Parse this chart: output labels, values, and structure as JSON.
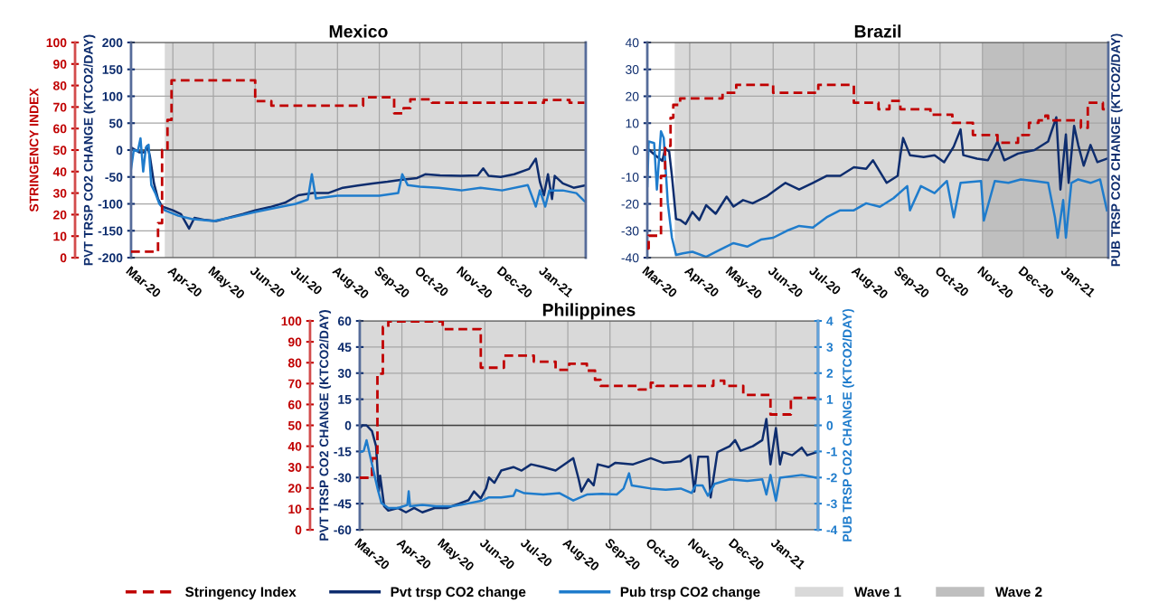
{
  "chart_data": [
    {
      "type": "line",
      "title": "Mexico",
      "ylabel": "STRINGENCY INDEX",
      "y2label": "PVT TRSP CO2 CHANGE (KTCO2/DAY)",
      "xlim": [
        "2020-03-01",
        "2021-02-01"
      ],
      "xticks": [
        {
          "value": "2020-03-01",
          "label": "Mar-20"
        },
        {
          "value": "2020-04-01",
          "label": "Apr-20"
        },
        {
          "value": "2020-05-01",
          "label": "May-20"
        },
        {
          "value": "2020-06-01",
          "label": "Jun-20"
        },
        {
          "value": "2020-07-01",
          "label": "Jul-20"
        },
        {
          "value": "2020-08-01",
          "label": "Aug-20"
        },
        {
          "value": "2020-09-01",
          "label": "Sep-20"
        },
        {
          "value": "2020-10-01",
          "label": "Oct-20"
        },
        {
          "value": "2020-11-01",
          "label": "Nov-20"
        },
        {
          "value": "2020-12-01",
          "label": "Dec-20"
        },
        {
          "value": "2021-01-01",
          "label": "Jan-21"
        }
      ],
      "ylim": [
        0,
        100
      ],
      "yticks": [
        0,
        10,
        20,
        30,
        40,
        50,
        60,
        70,
        80,
        90,
        100
      ],
      "y2lim": [
        -200,
        200
      ],
      "y2ticks": [
        -200,
        -150,
        -100,
        -50,
        0,
        50,
        100,
        150,
        200
      ],
      "grid": true,
      "ref_lines": [
        {
          "axis": "y2",
          "value": 0,
          "color": "#404040"
        }
      ],
      "bands": [
        {
          "axis": "x",
          "from": "2020-03-26",
          "to": "2021-02-01",
          "color": "#d9d9d9"
        }
      ],
      "series": [
        {
          "type": "step",
          "axis": "y",
          "color": "#c00000",
          "line_style": "dashed",
          "x": [
            "2020-03-01",
            "2020-03-19",
            "2020-03-21",
            "2020-03-24",
            "2020-03-28",
            "2020-03-31",
            "2020-06-01",
            "2020-06-13",
            "2020-08-20",
            "2020-09-12",
            "2020-09-19",
            "2020-09-24",
            "2020-10-10",
            "2021-01-01",
            "2021-01-20",
            "2021-01-31"
          ],
          "values": [
            2.8,
            2.8,
            16,
            50,
            64,
            82.4,
            72.7,
            70.6,
            74.5,
            67.1,
            69.5,
            73.6,
            72,
            73.3,
            72,
            72
          ]
        },
        {
          "axis": "y2",
          "color": "#0e2d6e",
          "x": [
            "2020-03-01",
            "2020-03-07",
            "2020-03-11",
            "2020-03-13",
            "2020-03-15",
            "2020-03-18",
            "2020-03-21",
            "2020-03-24",
            "2020-04-01",
            "2020-04-07",
            "2020-04-13",
            "2020-04-17",
            "2020-04-25",
            "2020-05-03",
            "2020-05-12",
            "2020-05-23",
            "2020-06-01",
            "2020-06-12",
            "2020-06-23",
            "2020-07-03",
            "2020-07-14",
            "2020-07-25",
            "2020-08-05",
            "2020-08-16",
            "2020-08-27",
            "2020-09-07",
            "2020-09-18",
            "2020-09-29",
            "2020-10-05",
            "2020-10-16",
            "2020-11-01",
            "2020-11-13",
            "2020-11-17",
            "2020-11-21",
            "2020-11-30",
            "2020-12-10",
            "2020-12-21",
            "2020-12-26",
            "2020-12-29",
            "2021-01-01",
            "2021-01-04",
            "2021-01-07",
            "2021-01-09",
            "2021-01-15",
            "2021-01-23",
            "2021-01-31"
          ],
          "values": [
            5,
            -4,
            -4,
            8,
            -12,
            -62,
            -91,
            -105,
            -112,
            -119,
            -146,
            -126,
            -130,
            -132,
            -126,
            -119,
            -112,
            -106,
            -98,
            -84,
            -80,
            -80,
            -70,
            -66,
            -62,
            -59,
            -55,
            -52,
            -45,
            -47,
            -48,
            -47,
            -34,
            -48,
            -50,
            -45,
            -35,
            -16,
            -59,
            -84,
            -45,
            -91,
            -48,
            -62,
            -70,
            -66
          ]
        },
        {
          "axis": "y2",
          "color": "#1f7ccc",
          "x": [
            "2020-03-01",
            "2020-03-03",
            "2020-03-06",
            "2020-03-08",
            "2020-03-10",
            "2020-03-12",
            "2020-03-14",
            "2020-03-16",
            "2020-03-19",
            "2020-03-22",
            "2020-03-26",
            "2020-04-05",
            "2020-04-15",
            "2020-05-01",
            "2020-05-15",
            "2020-06-01",
            "2020-06-15",
            "2020-07-01",
            "2020-07-10",
            "2020-07-13",
            "2020-07-16",
            "2020-08-01",
            "2020-08-15",
            "2020-09-01",
            "2020-09-15",
            "2020-09-18",
            "2020-09-22",
            "2020-10-01",
            "2020-10-15",
            "2020-11-01",
            "2020-11-15",
            "2020-12-01",
            "2020-12-20",
            "2020-12-26",
            "2020-12-29",
            "2021-01-02",
            "2021-01-05",
            "2021-01-15",
            "2021-01-25",
            "2021-01-31"
          ],
          "values": [
            -35,
            0,
            -2,
            22,
            -40,
            5,
            10,
            -65,
            -80,
            -100,
            -112,
            -122,
            -128,
            -132,
            -125,
            -115,
            -108,
            -100,
            -92,
            -45,
            -90,
            -85,
            -85,
            -85,
            -80,
            -45,
            -65,
            -68,
            -70,
            -75,
            -70,
            -75,
            -65,
            -105,
            -75,
            -105,
            -75,
            -75,
            -80,
            -95
          ]
        }
      ]
    },
    {
      "type": "line",
      "title": "Brazil",
      "y2label": "PUB TRSP CO2 CHANGE (KTCO2/DAY)",
      "xlim": [
        "2020-03-01",
        "2021-02-01"
      ],
      "xticks": [
        {
          "value": "2020-03-01",
          "label": "Mar-20"
        },
        {
          "value": "2020-04-01",
          "label": "Apr-20"
        },
        {
          "value": "2020-05-01",
          "label": "May-20"
        },
        {
          "value": "2020-06-01",
          "label": "Jun-20"
        },
        {
          "value": "2020-07-01",
          "label": "Jul-20"
        },
        {
          "value": "2020-08-01",
          "label": "Aug-20"
        },
        {
          "value": "2020-09-01",
          "label": "Sep-20"
        },
        {
          "value": "2020-10-01",
          "label": "Oct-20"
        },
        {
          "value": "2020-11-01",
          "label": "Nov-20"
        },
        {
          "value": "2020-12-01",
          "label": "Dec-20"
        },
        {
          "value": "2021-01-01",
          "label": "Jan-21"
        }
      ],
      "ylim": [
        0,
        100
      ],
      "y2lim": [
        -40,
        40
      ],
      "y2ticks": [
        -40,
        -30,
        -20,
        -10,
        0,
        10,
        20,
        30,
        40
      ],
      "grid": true,
      "legend": "bottom",
      "ref_lines": [
        {
          "axis": "y2",
          "value": 0,
          "color": "#404040"
        }
      ],
      "bands": [
        {
          "axis": "x",
          "from": "2020-03-21",
          "to": "2021-02-01",
          "color": "#d9d9d9",
          "label": "Wave 1"
        },
        {
          "axis": "x",
          "from": "2020-11-01",
          "to": "2021-02-01",
          "color": "#bfbfbf",
          "label": "Wave 2"
        }
      ],
      "series": [
        {
          "type": "step",
          "axis": "y",
          "color": "#c00000",
          "line_style": "dashed",
          "x": [
            "2020-03-01",
            "2020-03-02",
            "2020-03-11",
            "2020-03-14",
            "2020-03-18",
            "2020-03-20",
            "2020-03-25",
            "2020-04-25",
            "2020-05-05",
            "2020-06-01",
            "2020-07-04",
            "2020-07-30",
            "2020-08-17",
            "2020-08-25",
            "2020-09-02",
            "2020-09-24",
            "2020-10-10",
            "2020-10-25",
            "2020-11-12",
            "2020-11-27",
            "2020-12-05",
            "2020-12-12",
            "2020-12-17",
            "2020-12-19",
            "2021-01-12",
            "2021-01-17",
            "2021-01-28",
            "2021-01-31"
          ],
          "values": [
            4.3,
            10.2,
            38,
            52,
            65,
            71,
            74,
            76.6,
            80.3,
            76.6,
            80.3,
            72,
            69,
            72.8,
            69,
            66.4,
            62.7,
            57,
            53.4,
            57,
            62.7,
            63.8,
            66,
            63.8,
            60.3,
            72,
            69,
            69
          ]
        },
        {
          "axis": "y2",
          "color": "#0e2d6e",
          "x": [
            "2020-03-01",
            "2020-03-07",
            "2020-03-12",
            "2020-03-14",
            "2020-03-17",
            "2020-03-19",
            "2020-03-22",
            "2020-03-25",
            "2020-03-29",
            "2020-04-03",
            "2020-04-08",
            "2020-04-13",
            "2020-04-20",
            "2020-04-28",
            "2020-05-03",
            "2020-05-10",
            "2020-05-17",
            "2020-05-27",
            "2020-06-03",
            "2020-06-10",
            "2020-06-20",
            "2020-06-30",
            "2020-07-10",
            "2020-07-20",
            "2020-07-30",
            "2020-08-08",
            "2020-08-13",
            "2020-08-23",
            "2020-08-31",
            "2020-09-02",
            "2020-09-04",
            "2020-09-09",
            "2020-09-19",
            "2020-09-27",
            "2020-10-04",
            "2020-10-11",
            "2020-10-16",
            "2020-10-18",
            "2020-10-28",
            "2020-11-05",
            "2020-11-12",
            "2020-11-17",
            "2020-11-27",
            "2020-12-09",
            "2020-12-19",
            "2020-12-25",
            "2020-12-28",
            "2021-01-01",
            "2021-01-03",
            "2021-01-07",
            "2021-01-10",
            "2021-01-14",
            "2021-01-19",
            "2021-01-24",
            "2021-01-31"
          ],
          "values": [
            0.6,
            -2,
            -4,
            0.6,
            -0.6,
            -9.6,
            -25.6,
            -26,
            -27.5,
            -23,
            -26,
            -20.5,
            -23.7,
            -17.3,
            -21,
            -18.6,
            -19.8,
            -17.3,
            -14.7,
            -12.2,
            -14.7,
            -12.2,
            -9.6,
            -9.6,
            -6.4,
            -7,
            -3.8,
            -12.2,
            -9.6,
            -1.9,
            4.5,
            -1.9,
            -2.6,
            -1.9,
            -4.5,
            1.3,
            7.7,
            -1.9,
            -3.2,
            -3.8,
            3.2,
            -3.8,
            -1.3,
            0,
            3.2,
            12.2,
            -14.7,
            5.8,
            -12.2,
            9,
            1.9,
            -5.8,
            1.9,
            -4.5,
            -3.2
          ]
        },
        {
          "axis": "y2",
          "color": "#1f7ccc",
          "x": [
            "2020-03-01",
            "2020-03-02",
            "2020-03-06",
            "2020-03-08",
            "2020-03-11",
            "2020-03-13",
            "2020-03-16",
            "2020-03-19",
            "2020-03-22",
            "2020-03-27",
            "2020-04-03",
            "2020-04-13",
            "2020-04-23",
            "2020-05-03",
            "2020-05-13",
            "2020-05-23",
            "2020-06-01",
            "2020-06-11",
            "2020-06-20",
            "2020-06-30",
            "2020-07-10",
            "2020-07-20",
            "2020-07-30",
            "2020-08-08",
            "2020-08-18",
            "2020-08-28",
            "2020-09-07",
            "2020-09-09",
            "2020-09-17",
            "2020-09-27",
            "2020-10-06",
            "2020-10-11",
            "2020-10-16",
            "2020-10-31",
            "2020-11-02",
            "2020-11-10",
            "2020-11-20",
            "2020-11-29",
            "2020-12-09",
            "2020-12-19",
            "2020-12-24",
            "2020-12-26",
            "2020-12-30",
            "2021-01-01",
            "2021-01-05",
            "2021-01-10",
            "2021-01-19",
            "2021-01-26",
            "2021-01-31"
          ],
          "values": [
            -13.4,
            3.2,
            2.6,
            -14.7,
            7,
            4.5,
            -19.8,
            -32.6,
            -39,
            -38.4,
            -37.8,
            -39.7,
            -37.1,
            -34.6,
            -35.9,
            -33.3,
            -32.6,
            -30,
            -28.2,
            -28.8,
            -25,
            -22.4,
            -22.4,
            -19.8,
            -21.1,
            -17.9,
            -13.4,
            -22.4,
            -13.4,
            -16,
            -11.5,
            -25,
            -12.2,
            -11.5,
            -26.2,
            -11.5,
            -12.2,
            -10.9,
            -11.5,
            -12.2,
            -25,
            -32.6,
            -18.6,
            -32.6,
            -12.2,
            -10.9,
            -12.2,
            -10.9,
            -22.4
          ]
        }
      ]
    },
    {
      "type": "line",
      "title": "Philippines",
      "y2label": "PVT TRSP CO2 CHANGE (KTCO2/DAY)",
      "y3label": "PUB TRSP CO2 CHANGE (KTCO2/DAY)",
      "xlim": [
        "2020-03-01",
        "2021-02-01"
      ],
      "xticks": [
        {
          "value": "2020-03-01",
          "label": "Mar-20"
        },
        {
          "value": "2020-04-01",
          "label": "Apr-20"
        },
        {
          "value": "2020-05-01",
          "label": "May-20"
        },
        {
          "value": "2020-06-01",
          "label": "Jun-20"
        },
        {
          "value": "2020-07-01",
          "label": "Jul-20"
        },
        {
          "value": "2020-08-01",
          "label": "Aug-20"
        },
        {
          "value": "2020-09-01",
          "label": "Sep-20"
        },
        {
          "value": "2020-10-01",
          "label": "Oct-20"
        },
        {
          "value": "2020-11-01",
          "label": "Nov-20"
        },
        {
          "value": "2020-12-01",
          "label": "Dec-20"
        },
        {
          "value": "2021-01-01",
          "label": "Jan-21"
        }
      ],
      "ylim": [
        0,
        100
      ],
      "yticks": [
        0,
        10,
        20,
        30,
        40,
        50,
        60,
        70,
        80,
        90,
        100
      ],
      "y2lim": [
        -60,
        60
      ],
      "y2ticks": [
        -60,
        -45,
        -30,
        -15,
        0,
        15,
        30,
        45,
        60
      ],
      "y3lim": [
        -4,
        4
      ],
      "y3ticks": [
        -4,
        -3,
        -2,
        -1,
        0,
        1,
        2,
        3,
        4
      ],
      "grid": true,
      "legend": "bottom",
      "ref_lines": [
        {
          "axis": "y2",
          "value": 0,
          "color": "#404040"
        }
      ],
      "bands": [
        {
          "axis": "x",
          "from": "2020-03-01",
          "to": "2021-02-01",
          "color": "#d9d9d9"
        }
      ],
      "series": [
        {
          "type": "step",
          "name": "Stringency Index",
          "axis": "y",
          "color": "#c00000",
          "line_style": "dashed",
          "x": [
            "2020-03-01",
            "2020-03-10",
            "2020-03-14",
            "2020-03-18",
            "2020-03-22",
            "2020-05-01",
            "2020-05-29",
            "2020-06-15",
            "2020-07-07",
            "2020-07-23",
            "2020-08-02",
            "2020-08-15",
            "2020-08-21",
            "2020-08-25",
            "2020-09-22",
            "2020-10-01",
            "2020-10-05",
            "2020-11-16",
            "2020-11-24",
            "2020-12-08",
            "2020-12-28",
            "2021-01-12",
            "2021-01-31"
          ],
          "values": [
            24.9,
            34.2,
            74.7,
            97.1,
            99.7,
            96.1,
            77.6,
            83.4,
            80.5,
            76.6,
            79.5,
            76.2,
            71.8,
            68.9,
            67.2,
            70.4,
            68.9,
            71.4,
            68.9,
            64.6,
            55.2,
            63.2,
            63.2
          ]
        },
        {
          "name": "Pvt trsp CO2 change",
          "axis": "y2",
          "color": "#0e2d6e",
          "x": [
            "2020-03-01",
            "2020-03-03",
            "2020-03-06",
            "2020-03-10",
            "2020-03-13",
            "2020-03-15",
            "2020-03-16",
            "2020-03-19",
            "2020-03-22",
            "2020-03-29",
            "2020-04-04",
            "2020-04-10",
            "2020-04-16",
            "2020-04-25",
            "2020-05-04",
            "2020-05-13",
            "2020-05-20",
            "2020-05-24",
            "2020-05-29",
            "2020-06-02",
            "2020-06-04",
            "2020-06-08",
            "2020-06-13",
            "2020-06-22",
            "2020-06-28",
            "2020-07-05",
            "2020-07-14",
            "2020-07-23",
            "2020-08-05",
            "2020-08-09",
            "2020-08-11",
            "2020-08-16",
            "2020-08-20",
            "2020-08-23",
            "2020-08-31",
            "2020-09-05",
            "2020-09-18",
            "2020-10-01",
            "2020-10-10",
            "2020-10-23",
            "2020-10-30",
            "2020-11-02",
            "2020-11-05",
            "2020-11-12",
            "2020-11-14",
            "2020-11-19",
            "2020-11-28",
            "2020-12-02",
            "2020-12-06",
            "2020-12-15",
            "2020-12-22",
            "2020-12-25",
            "2020-12-28",
            "2021-01-01",
            "2021-01-04",
            "2021-01-06",
            "2021-01-13",
            "2021-01-20",
            "2021-01-24",
            "2021-01-31"
          ],
          "values": [
            -1.6,
            0,
            0,
            -3.3,
            -12,
            -38,
            -29,
            -46.6,
            -49,
            -47.5,
            -50,
            -47.5,
            -50,
            -47.5,
            -47.5,
            -45,
            -43,
            -38,
            -42,
            -36,
            -30,
            -33,
            -26,
            -24,
            -26,
            -22.4,
            -24,
            -26,
            -18.9,
            -31,
            -38,
            -31,
            -34.5,
            -22.4,
            -24,
            -21.5,
            -22.4,
            -18.9,
            -21.5,
            -20.6,
            -17.2,
            -38,
            -18,
            -18,
            -41.4,
            -15.4,
            -12,
            -8.5,
            -14.6,
            -12,
            -8.5,
            3.6,
            -22.4,
            -1.6,
            -22.4,
            -15.4,
            -17.2,
            -12.8,
            -17.2,
            -15.4
          ]
        },
        {
          "name": "Pub trsp CO2 change",
          "axis": "y3",
          "color": "#1f7ccc",
          "x": [
            "2020-03-01",
            "2020-03-04",
            "2020-03-06",
            "2020-03-08",
            "2020-03-12",
            "2020-03-14",
            "2020-03-17",
            "2020-03-22",
            "2020-03-29",
            "2020-04-05",
            "2020-04-06",
            "2020-04-07",
            "2020-04-16",
            "2020-04-26",
            "2020-05-08",
            "2020-05-19",
            "2020-05-30",
            "2020-06-04",
            "2020-06-13",
            "2020-06-22",
            "2020-06-24",
            "2020-06-30",
            "2020-07-14",
            "2020-07-26",
            "2020-08-05",
            "2020-08-15",
            "2020-08-26",
            "2020-09-06",
            "2020-09-11",
            "2020-09-15",
            "2020-09-17",
            "2020-10-01",
            "2020-10-12",
            "2020-10-23",
            "2020-10-31",
            "2020-11-03",
            "2020-11-08",
            "2020-11-12",
            "2020-11-17",
            "2020-11-28",
            "2020-12-11",
            "2020-12-22",
            "2020-12-25",
            "2020-12-28",
            "2021-01-01",
            "2021-01-04",
            "2021-01-20",
            "2021-01-31"
          ],
          "values": [
            -1.03,
            -0.97,
            -0.57,
            -1.03,
            -1.95,
            -2.4,
            -2.98,
            -3.17,
            -3.17,
            -3.05,
            -2.53,
            -3.1,
            -3.05,
            -3.1,
            -3.1,
            -3.0,
            -2.88,
            -2.76,
            -2.76,
            -2.7,
            -2.47,
            -2.6,
            -2.65,
            -2.6,
            -2.88,
            -2.65,
            -2.62,
            -2.65,
            -2.42,
            -1.84,
            -2.3,
            -2.42,
            -2.47,
            -2.42,
            -2.59,
            -2.3,
            -2.3,
            -2.7,
            -2.24,
            -2.07,
            -2.13,
            -2.07,
            -2.65,
            -1.9,
            -2.88,
            -2.01,
            -1.9,
            -2.01
          ]
        }
      ]
    }
  ]
}
